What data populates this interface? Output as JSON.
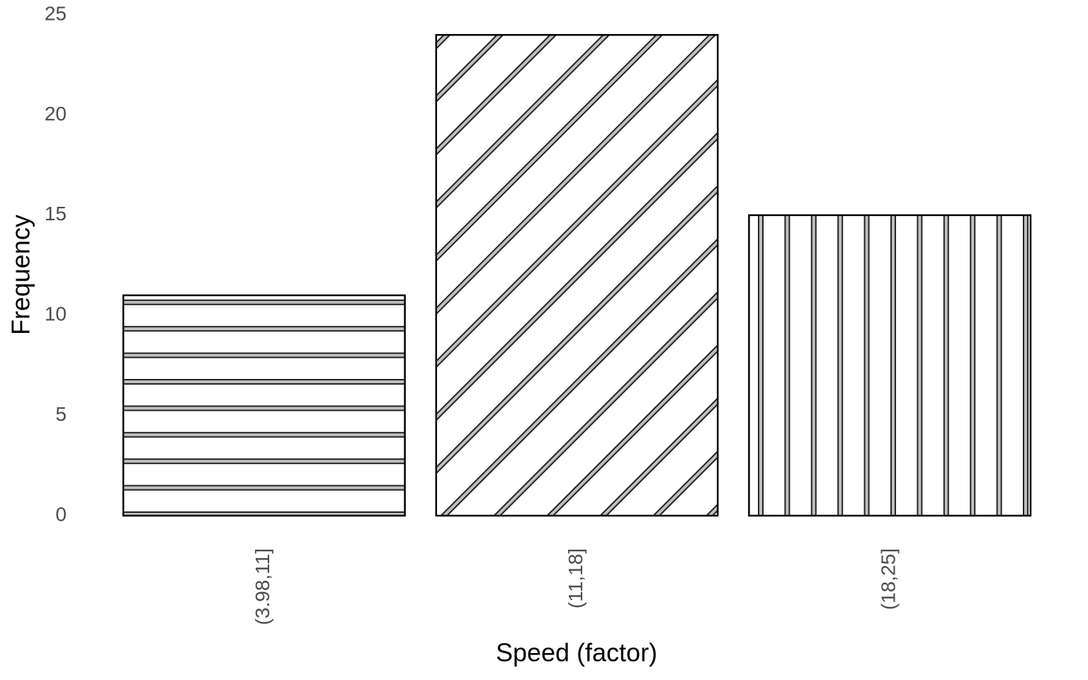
{
  "chart_data": {
    "type": "bar",
    "x_label": "Speed (factor)",
    "y_label": "Frequency",
    "categories": [
      "(3.98,11]",
      "(11,18]",
      "(18,25]"
    ],
    "values": [
      11,
      24,
      15
    ],
    "patterns": [
      "horizontal",
      "diagonal",
      "vertical"
    ],
    "ylim": [
      0,
      25
    ],
    "yticks": [
      0,
      5,
      10,
      15,
      20,
      25
    ],
    "grid": false
  }
}
